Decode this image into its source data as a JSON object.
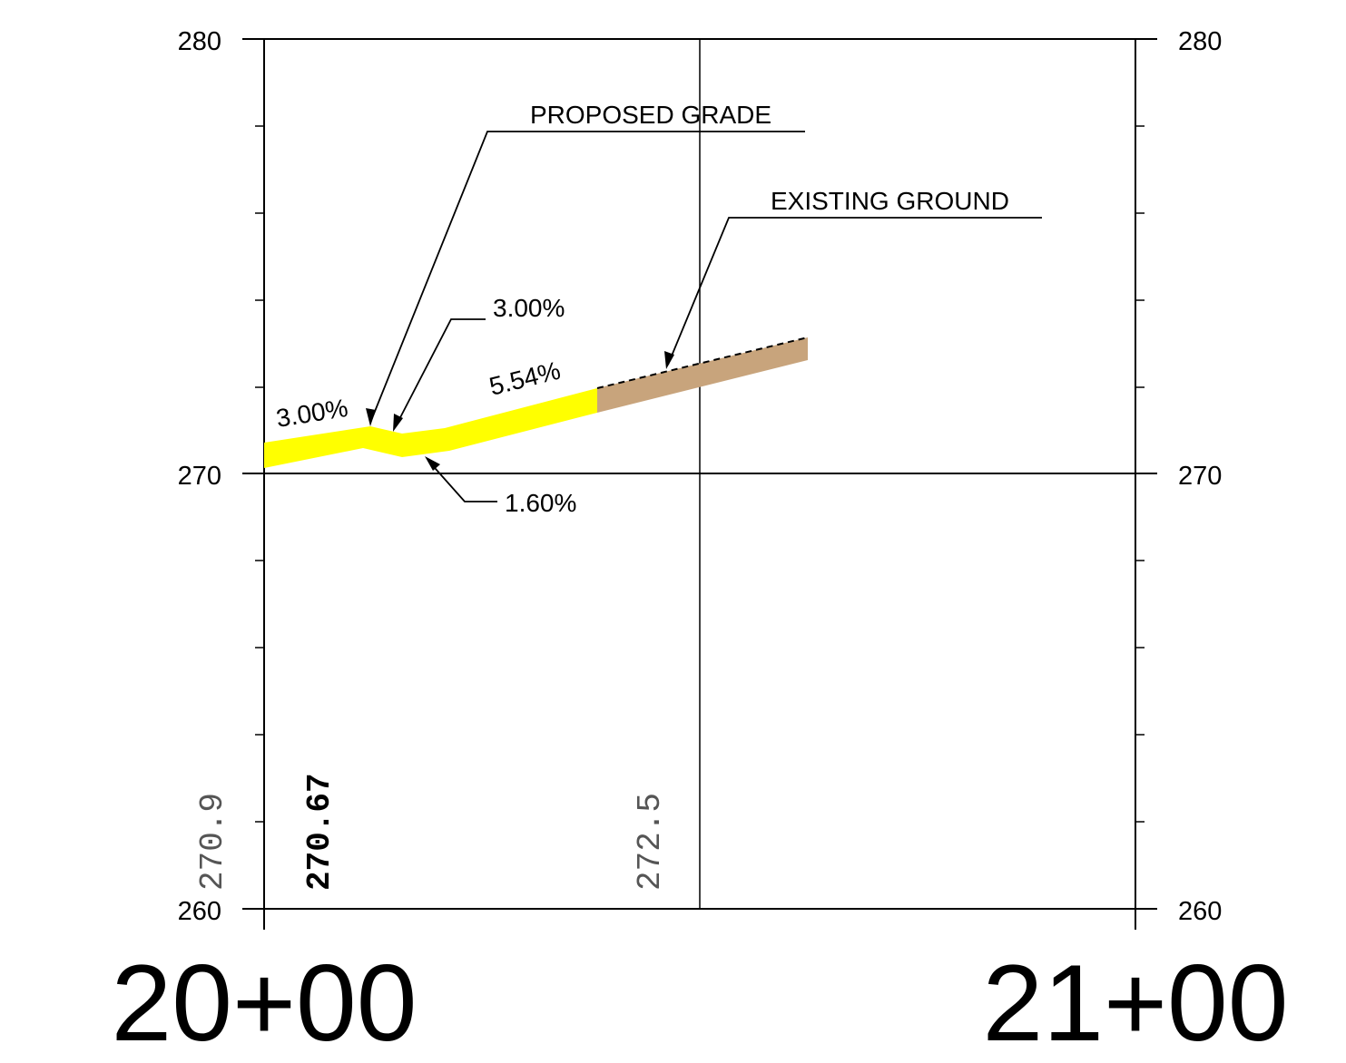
{
  "elevation_labels": {
    "left_top": "280",
    "left_mid": "270",
    "left_bottom": "260",
    "right_top": "280",
    "right_mid": "270",
    "right_bottom": "260"
  },
  "stations": {
    "left": "20+00",
    "right": "21+00"
  },
  "annotations": {
    "proposed_grade": "PROPOSED GRADE",
    "existing_ground": "EXISTING GROUND",
    "slope_left": "3.00%",
    "slope_upper": "3.00%",
    "slope_main": "5.54%",
    "slope_low": "1.60%"
  },
  "vertical_elevations": {
    "existing_left": "270.9",
    "proposed_left": "270.67",
    "existing_mid": "272.5"
  },
  "colors": {
    "proposed_grade": "#ffff00",
    "existing_ground": "#c8a47c",
    "lines": "#000000",
    "existing_text": "#555555"
  }
}
